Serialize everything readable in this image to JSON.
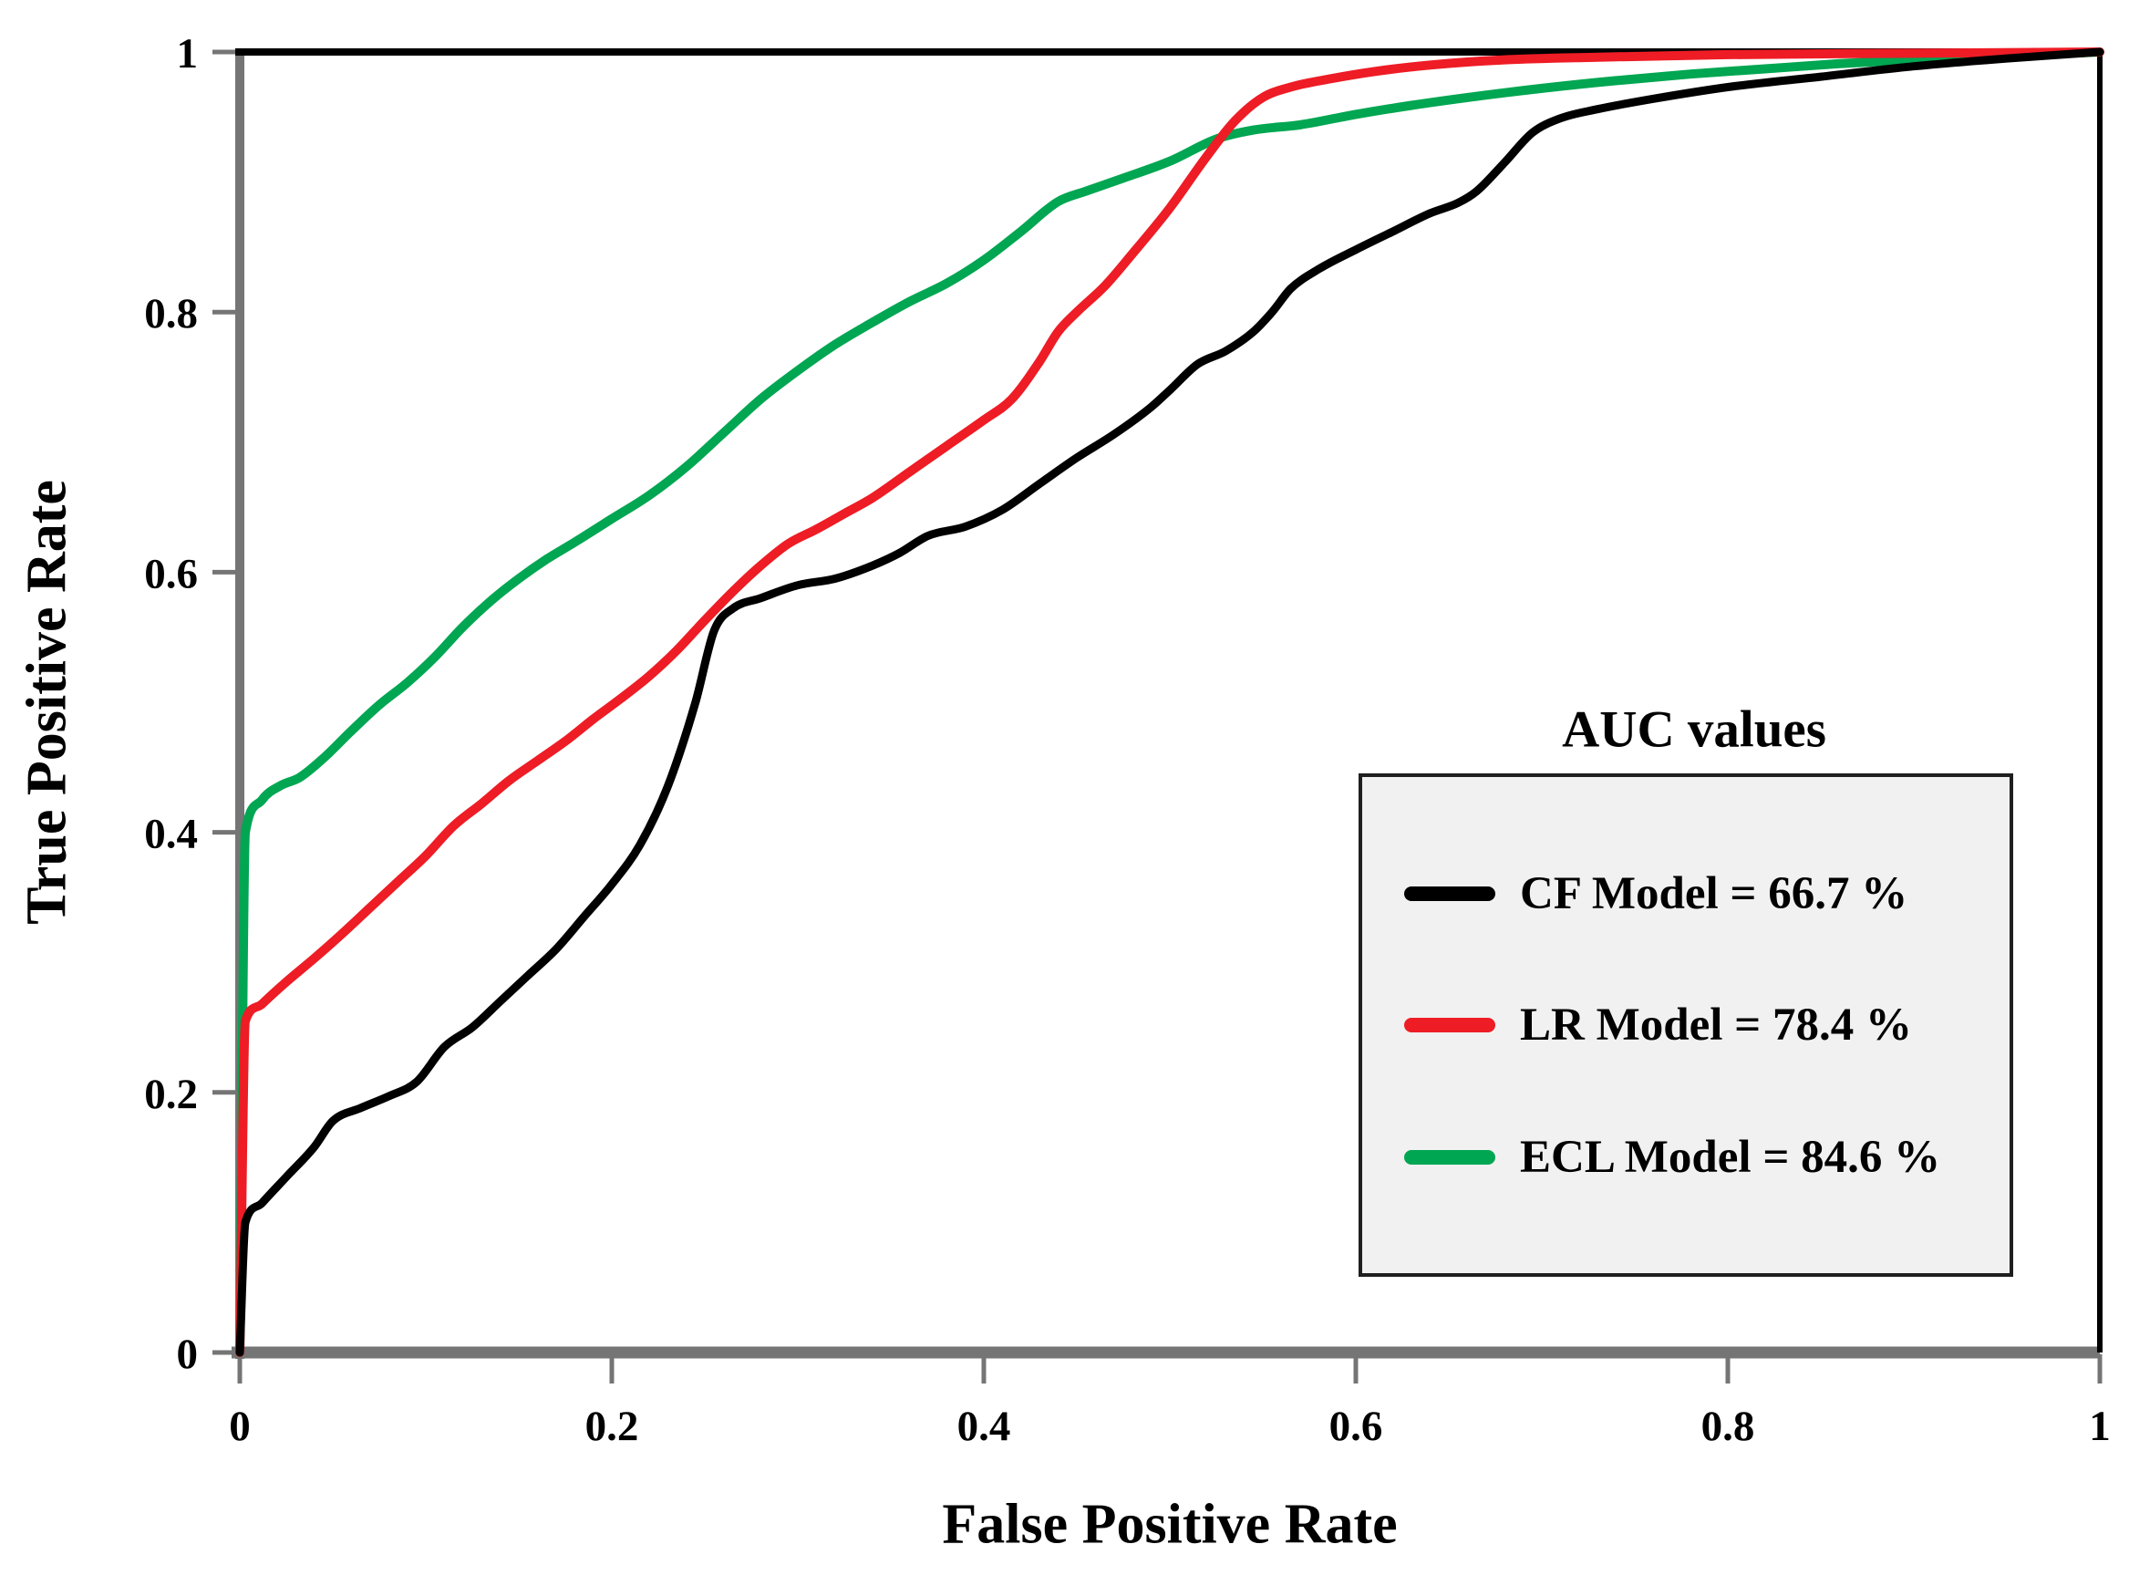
{
  "figure": {
    "background": "#ffffff"
  },
  "chart": {
    "x_axis_title": "False Positive Rate",
    "y_axis_title": "True Positive Rate"
  },
  "legend": {
    "title": "AUC values",
    "items": [
      {
        "name": "CF Model",
        "label": "CF Model = 66.7 %",
        "color": "#000000"
      },
      {
        "name": "LR Model",
        "label": "LR Model = 78.4 %",
        "color": "#ee1c25"
      },
      {
        "name": "ECL Model",
        "label": "ECL Model = 84.6 %",
        "color": "#00a651"
      }
    ]
  },
  "colors": {
    "axis_gray": "#757575",
    "border_black": "#000000",
    "legend_background": "#f1f1f1",
    "cf_black": "#000000",
    "lr_red": "#ee1c25",
    "ecl_green": "#00a651"
  },
  "chart_data": {
    "type": "line",
    "title": "",
    "xlabel": "False Positive Rate",
    "ylabel": "True Positive Rate",
    "xlim": [
      0,
      1
    ],
    "ylim": [
      0,
      1
    ],
    "x_ticks": [
      0,
      0.2,
      0.4,
      0.6,
      0.8,
      1
    ],
    "x_tick_labels": [
      "0",
      "0.2",
      "0.4",
      "0.6",
      "0.8",
      "1"
    ],
    "y_ticks": [
      0,
      0.2,
      0.4,
      0.6,
      0.8,
      1
    ],
    "y_tick_labels": [
      "0",
      "0.2",
      "0.4",
      "0.6",
      "0.8",
      "1"
    ],
    "grid": false,
    "legend_position": "inside-right",
    "legend_title": "AUC values",
    "series": [
      {
        "name": "CF Model",
        "auc_percent": 66.7,
        "color": "#000000",
        "stroke_width": 9,
        "points": [
          [
            0,
            0
          ],
          [
            0.003,
            0.1
          ],
          [
            0.012,
            0.115
          ],
          [
            0.025,
            0.135
          ],
          [
            0.04,
            0.158
          ],
          [
            0.05,
            0.178
          ],
          [
            0.065,
            0.188
          ],
          [
            0.08,
            0.197
          ],
          [
            0.095,
            0.208
          ],
          [
            0.11,
            0.235
          ],
          [
            0.125,
            0.25
          ],
          [
            0.14,
            0.27
          ],
          [
            0.155,
            0.29
          ],
          [
            0.17,
            0.31
          ],
          [
            0.185,
            0.335
          ],
          [
            0.2,
            0.36
          ],
          [
            0.215,
            0.39
          ],
          [
            0.23,
            0.435
          ],
          [
            0.245,
            0.5
          ],
          [
            0.255,
            0.555
          ],
          [
            0.265,
            0.572
          ],
          [
            0.28,
            0.58
          ],
          [
            0.3,
            0.59
          ],
          [
            0.32,
            0.595
          ],
          [
            0.34,
            0.605
          ],
          [
            0.355,
            0.615
          ],
          [
            0.37,
            0.628
          ],
          [
            0.39,
            0.635
          ],
          [
            0.41,
            0.648
          ],
          [
            0.43,
            0.668
          ],
          [
            0.45,
            0.688
          ],
          [
            0.47,
            0.706
          ],
          [
            0.49,
            0.727
          ],
          [
            0.5,
            0.74
          ],
          [
            0.515,
            0.76
          ],
          [
            0.53,
            0.77
          ],
          [
            0.545,
            0.785
          ],
          [
            0.555,
            0.8
          ],
          [
            0.565,
            0.818
          ],
          [
            0.58,
            0.833
          ],
          [
            0.6,
            0.848
          ],
          [
            0.62,
            0.862
          ],
          [
            0.64,
            0.876
          ],
          [
            0.655,
            0.884
          ],
          [
            0.665,
            0.893
          ],
          [
            0.68,
            0.915
          ],
          [
            0.695,
            0.938
          ],
          [
            0.71,
            0.949
          ],
          [
            0.73,
            0.956
          ],
          [
            0.76,
            0.964
          ],
          [
            0.8,
            0.973
          ],
          [
            0.85,
            0.981
          ],
          [
            0.9,
            0.989
          ],
          [
            0.95,
            0.995
          ],
          [
            1,
            1
          ]
        ]
      },
      {
        "name": "LR Model",
        "auc_percent": 78.4,
        "color": "#ee1c25",
        "stroke_width": 10,
        "points": [
          [
            0,
            0
          ],
          [
            0.003,
            0.255
          ],
          [
            0.012,
            0.268
          ],
          [
            0.025,
            0.285
          ],
          [
            0.04,
            0.303
          ],
          [
            0.055,
            0.322
          ],
          [
            0.07,
            0.342
          ],
          [
            0.085,
            0.362
          ],
          [
            0.1,
            0.382
          ],
          [
            0.115,
            0.405
          ],
          [
            0.13,
            0.422
          ],
          [
            0.145,
            0.44
          ],
          [
            0.16,
            0.455
          ],
          [
            0.175,
            0.47
          ],
          [
            0.19,
            0.487
          ],
          [
            0.205,
            0.503
          ],
          [
            0.22,
            0.52
          ],
          [
            0.235,
            0.54
          ],
          [
            0.25,
            0.563
          ],
          [
            0.265,
            0.585
          ],
          [
            0.28,
            0.605
          ],
          [
            0.295,
            0.622
          ],
          [
            0.31,
            0.633
          ],
          [
            0.325,
            0.645
          ],
          [
            0.34,
            0.657
          ],
          [
            0.36,
            0.677
          ],
          [
            0.38,
            0.697
          ],
          [
            0.4,
            0.717
          ],
          [
            0.415,
            0.733
          ],
          [
            0.43,
            0.762
          ],
          [
            0.44,
            0.785
          ],
          [
            0.45,
            0.8
          ],
          [
            0.465,
            0.82
          ],
          [
            0.48,
            0.845
          ],
          [
            0.5,
            0.88
          ],
          [
            0.52,
            0.92
          ],
          [
            0.535,
            0.947
          ],
          [
            0.55,
            0.965
          ],
          [
            0.565,
            0.973
          ],
          [
            0.585,
            0.979
          ],
          [
            0.61,
            0.985
          ],
          [
            0.64,
            0.99
          ],
          [
            0.68,
            0.994
          ],
          [
            0.73,
            0.996
          ],
          [
            0.8,
            0.998
          ],
          [
            0.9,
            0.999
          ],
          [
            1,
            1
          ]
        ]
      },
      {
        "name": "ECL Model",
        "auc_percent": 84.6,
        "color": "#00a651",
        "stroke_width": 10,
        "points": [
          [
            0,
            0
          ],
          [
            0.003,
            0.4
          ],
          [
            0.012,
            0.425
          ],
          [
            0.022,
            0.436
          ],
          [
            0.032,
            0.442
          ],
          [
            0.045,
            0.457
          ],
          [
            0.06,
            0.478
          ],
          [
            0.075,
            0.498
          ],
          [
            0.09,
            0.515
          ],
          [
            0.105,
            0.535
          ],
          [
            0.12,
            0.558
          ],
          [
            0.135,
            0.578
          ],
          [
            0.15,
            0.595
          ],
          [
            0.165,
            0.61
          ],
          [
            0.18,
            0.623
          ],
          [
            0.2,
            0.641
          ],
          [
            0.22,
            0.659
          ],
          [
            0.24,
            0.681
          ],
          [
            0.26,
            0.707
          ],
          [
            0.28,
            0.733
          ],
          [
            0.3,
            0.755
          ],
          [
            0.32,
            0.775
          ],
          [
            0.34,
            0.792
          ],
          [
            0.36,
            0.808
          ],
          [
            0.38,
            0.822
          ],
          [
            0.4,
            0.84
          ],
          [
            0.42,
            0.862
          ],
          [
            0.44,
            0.885
          ],
          [
            0.455,
            0.893
          ],
          [
            0.475,
            0.903
          ],
          [
            0.5,
            0.916
          ],
          [
            0.525,
            0.933
          ],
          [
            0.545,
            0.94
          ],
          [
            0.57,
            0.944
          ],
          [
            0.6,
            0.952
          ],
          [
            0.63,
            0.959
          ],
          [
            0.66,
            0.965
          ],
          [
            0.7,
            0.972
          ],
          [
            0.74,
            0.978
          ],
          [
            0.78,
            0.983
          ],
          [
            0.82,
            0.987
          ],
          [
            0.86,
            0.991
          ],
          [
            0.9,
            0.994
          ],
          [
            0.95,
            0.997
          ],
          [
            1,
            1
          ]
        ]
      }
    ]
  }
}
